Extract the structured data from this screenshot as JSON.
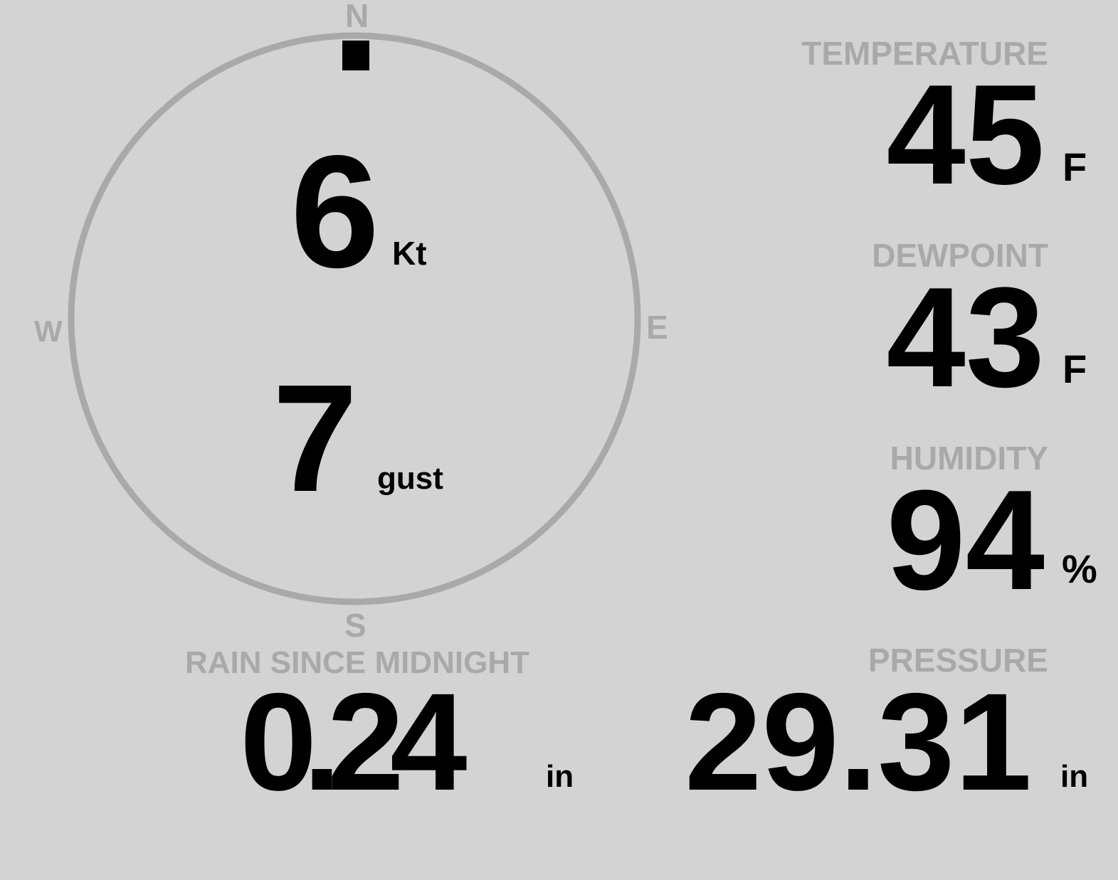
{
  "colors": {
    "background": "#d3d3d3",
    "label": "#a9a9a9",
    "value": "#000000"
  },
  "wind": {
    "compass": {
      "n": "N",
      "e": "E",
      "s": "S",
      "w": "W"
    },
    "direction_deg": 0,
    "speed": "6",
    "speed_unit": "Kt",
    "gust": "7",
    "gust_unit": "gust"
  },
  "temperature": {
    "label": "TEMPERATURE",
    "value": "45",
    "unit": "F"
  },
  "dewpoint": {
    "label": "DEWPOINT",
    "value": "43",
    "unit": "F"
  },
  "humidity": {
    "label": "HUMIDITY",
    "value": "94",
    "unit": "%"
  },
  "rain": {
    "label": "RAIN SINCE MIDNIGHT",
    "value": "0.24",
    "unit": "in"
  },
  "pressure": {
    "label": "PRESSURE",
    "value": "29.31",
    "unit": "in"
  }
}
